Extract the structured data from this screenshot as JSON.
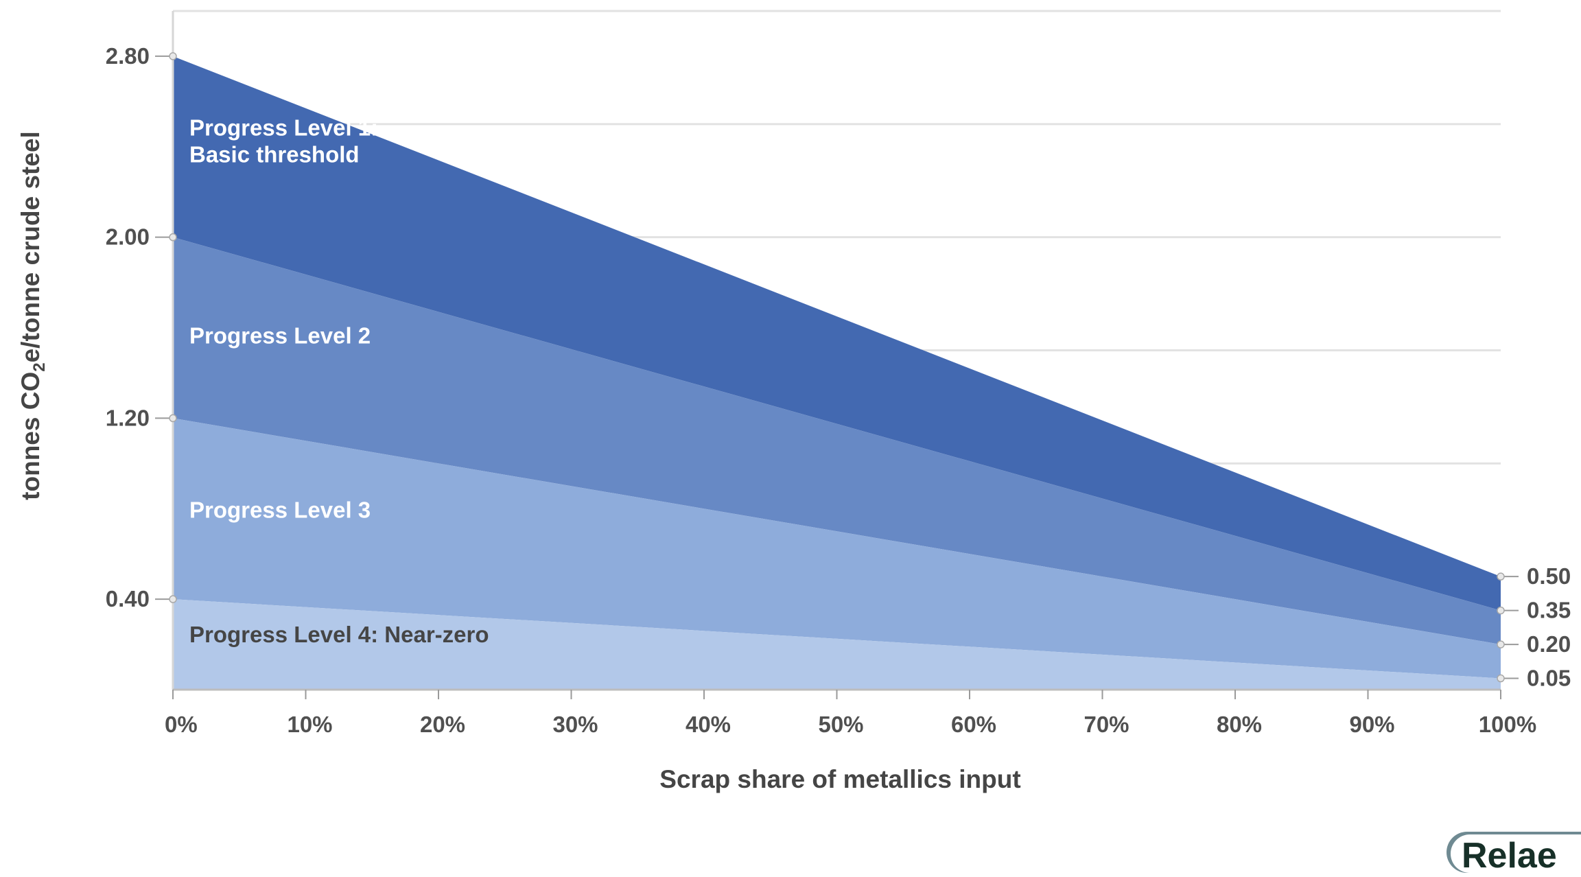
{
  "chart_data": {
    "type": "area",
    "xlabel": "Scrap share of metallics input",
    "ylabel_main": "tonnes CO",
    "ylabel_sub": "2",
    "ylabel_tail": "e/tonne crude steel",
    "x_ticks": [
      "0%",
      "10%",
      "20%",
      "30%",
      "40%",
      "50%",
      "60%",
      "70%",
      "80%",
      "90%",
      "100%"
    ],
    "y_ticks_left": [
      "2.80",
      "2.00",
      "1.20",
      "0.40"
    ],
    "y_ticks_right": [
      "0.50",
      "0.35",
      "0.20",
      "0.05"
    ],
    "xlim": [
      0,
      100
    ],
    "ylim": [
      0,
      3.0
    ],
    "y_gridlines": [
      0.5,
      1.0,
      1.5,
      2.0,
      2.5,
      3.0
    ],
    "bands": [
      {
        "name": "Progress Level 1:",
        "name_line2": "Basic threshold",
        "upper": [
          2.8,
          0.5
        ],
        "lower": [
          2.0,
          0.35
        ],
        "color": "#4369b1",
        "label_color": "#ffffff"
      },
      {
        "name": "Progress Level 2",
        "upper": [
          2.0,
          0.35
        ],
        "lower": [
          1.2,
          0.2
        ],
        "color": "#6789c5",
        "label_color": "#ffffff"
      },
      {
        "name": "Progress Level 3",
        "upper": [
          1.2,
          0.2
        ],
        "lower": [
          0.4,
          0.05
        ],
        "color": "#8eacdb",
        "label_color": "#ffffff"
      },
      {
        "name": "Progress Level 4: Near-zero",
        "upper": [
          0.4,
          0.05
        ],
        "lower": [
          0,
          0
        ],
        "color": "#b2c8e9",
        "label_color": "#454545"
      }
    ],
    "grid": true
  },
  "logo_text": "Relae"
}
